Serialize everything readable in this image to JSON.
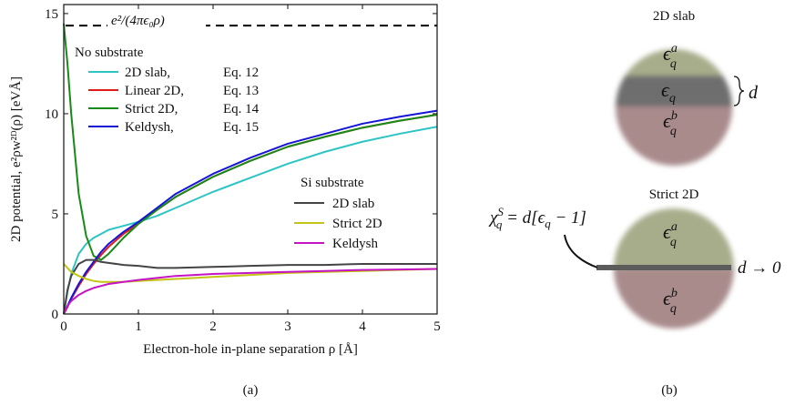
{
  "chart_data": {
    "type": "line",
    "x_label": "Electron-hole in-plane separation ρ [Å]",
    "y_label": "2D potential, e²ρw²ᴰ(ρ) [eVÅ]",
    "panel_label": "(a)",
    "xlim": [
      0,
      5
    ],
    "xticks": [
      0,
      1,
      2,
      3,
      4,
      5
    ],
    "ylim": [
      0,
      15.45
    ],
    "yticks": [
      0,
      5,
      10,
      15
    ],
    "reference_line": {
      "value": 14.4,
      "label": "e²/(4πϵ₀ρ)"
    },
    "legend_titles": [
      "No substrate",
      "Si substrate"
    ],
    "x": [
      0,
      0.05,
      0.1,
      0.2,
      0.3,
      0.4,
      0.5,
      0.6,
      0.8,
      1,
      1.25,
      1.5,
      2,
      2.5,
      3,
      3.5,
      4,
      4.5,
      5
    ],
    "series": [
      {
        "name": "2D slab,",
        "equation": "Eq. 12",
        "group": 0,
        "color": "#2ec4c4",
        "values": [
          0,
          1.1,
          2.0,
          3.0,
          3.5,
          3.8,
          4.0,
          4.2,
          4.4,
          4.6,
          4.9,
          5.3,
          6.1,
          6.8,
          7.5,
          8.1,
          8.6,
          9.0,
          9.35
        ]
      },
      {
        "name": "Linear 2D,",
        "equation": "Eq. 13",
        "group": 0,
        "color": "#e01919",
        "values": [
          0,
          0.35,
          0.75,
          1.4,
          2.0,
          2.5,
          2.95,
          3.35,
          4.0,
          4.5,
          5.2,
          5.85,
          6.85,
          7.65,
          8.35,
          8.85,
          9.3,
          9.65,
          9.95
        ]
      },
      {
        "name": "Strict 2D,",
        "equation": "Eq. 14",
        "group": 0,
        "color": "#178a17",
        "values": [
          14.5,
          12.5,
          10.0,
          6.0,
          3.9,
          2.9,
          2.7,
          3.0,
          3.8,
          4.5,
          5.2,
          5.85,
          6.85,
          7.65,
          8.35,
          8.85,
          9.3,
          9.65,
          9.95
        ]
      },
      {
        "name": "Keldysh,",
        "equation": "Eq. 15",
        "group": 0,
        "color": "#1515d6",
        "values": [
          0,
          0.4,
          0.8,
          1.5,
          2.1,
          2.6,
          3.1,
          3.5,
          4.1,
          4.6,
          5.3,
          6.0,
          7.0,
          7.8,
          8.5,
          9.0,
          9.5,
          9.85,
          10.15
        ]
      },
      {
        "name": "2D slab",
        "group": 1,
        "color": "#444444",
        "values": [
          0,
          1.2,
          1.9,
          2.5,
          2.7,
          2.7,
          2.6,
          2.55,
          2.45,
          2.4,
          2.3,
          2.3,
          2.35,
          2.4,
          2.45,
          2.45,
          2.5,
          2.5,
          2.5
        ]
      },
      {
        "name": "Strict 2D",
        "group": 1,
        "color": "#c4c414",
        "values": [
          2.5,
          2.3,
          2.1,
          1.9,
          1.75,
          1.65,
          1.6,
          1.6,
          1.6,
          1.65,
          1.7,
          1.75,
          1.85,
          1.95,
          2.05,
          2.1,
          2.15,
          2.2,
          2.25
        ]
      },
      {
        "name": "Keldysh",
        "group": 1,
        "color": "#c414c4",
        "values": [
          0,
          0.4,
          0.65,
          0.95,
          1.15,
          1.3,
          1.4,
          1.5,
          1.6,
          1.7,
          1.8,
          1.9,
          2.0,
          2.05,
          2.1,
          2.15,
          2.2,
          2.22,
          2.25
        ]
      }
    ]
  },
  "diagram": {
    "panel_label": "(b)",
    "slab": {
      "title": "2D slab",
      "top": {
        "symbol": "ϵ",
        "sub": "q",
        "sup": "a"
      },
      "middle": {
        "symbol": "ϵ",
        "sub": "q"
      },
      "bottom": {
        "symbol": "ϵ",
        "sub": "q",
        "sup": "b"
      },
      "thickness": "d"
    },
    "strict": {
      "title": "Strict 2D",
      "top": {
        "symbol": "ϵ",
        "sub": "q",
        "sup": "a"
      },
      "bottom": {
        "symbol": "ϵ",
        "sub": "q",
        "sup": "b"
      },
      "limit": "d → 0",
      "chi": {
        "symbol": "χ",
        "sub": "q",
        "sup": "S",
        "rest": " = d[ϵ",
        "rest_sub": "q",
        "rest_end": " − 1]"
      }
    }
  }
}
